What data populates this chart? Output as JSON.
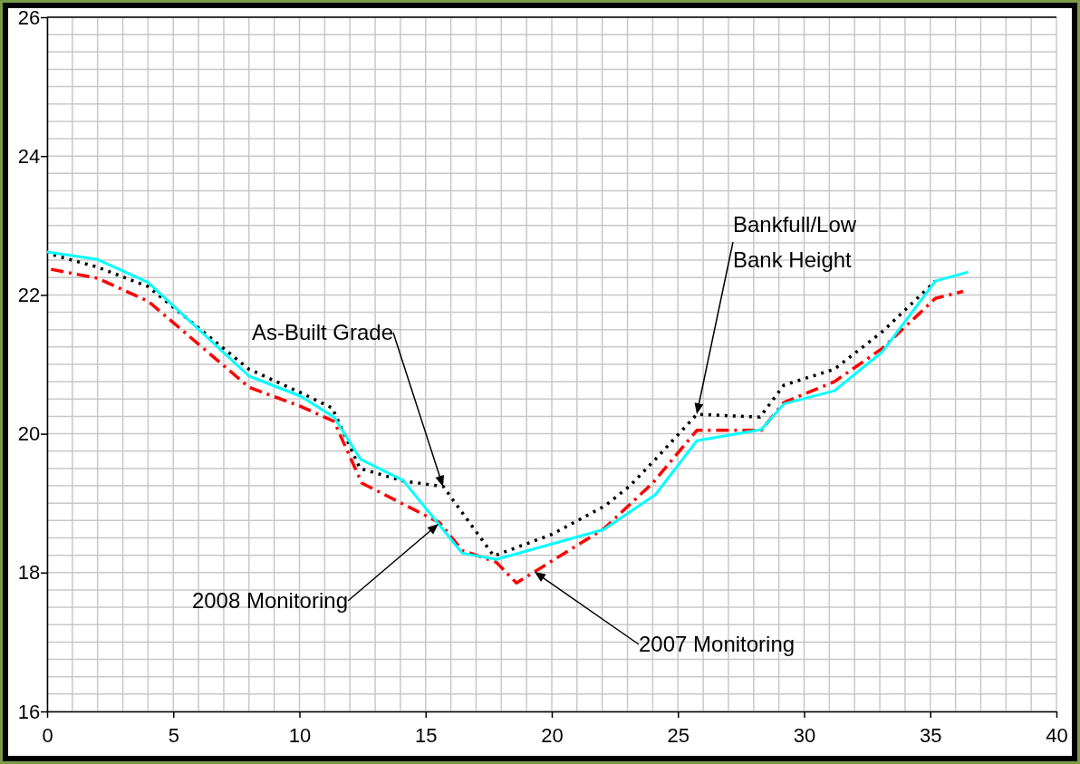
{
  "chart_data": {
    "type": "line",
    "xlim": [
      0,
      40
    ],
    "xticks": [
      0,
      5,
      10,
      15,
      20,
      25,
      30,
      35,
      40
    ],
    "ylim": [
      16,
      26
    ],
    "yticks": [
      16,
      18,
      20,
      22,
      24,
      26
    ],
    "grid": true,
    "marker": "none",
    "series": [
      {
        "color": "#000000",
        "line_style": "dotted",
        "x": [
          0,
          2,
          4,
          8,
          10,
          11.3,
          12.4,
          14.1,
          15.7,
          17.7,
          20,
          22.1,
          23.1,
          24.1,
          25.75,
          28.25,
          29.2,
          31.2,
          33.1,
          35.2
        ],
        "values": [
          22.6,
          22.4,
          22.12,
          20.93,
          20.6,
          20.37,
          19.5,
          19.32,
          19.24,
          18.24,
          18.55,
          18.96,
          19.25,
          19.63,
          20.28,
          20.24,
          20.7,
          20.93,
          21.47,
          22.2
        ]
      },
      {
        "color": "#ff0000",
        "line_style": "dashed",
        "x": [
          0,
          2,
          4,
          8,
          10,
          11.37,
          12.47,
          15.55,
          16.45,
          17.8,
          18.6,
          22.06,
          24.0,
          25.75,
          28.3,
          29.2,
          31.2,
          33.1,
          35.2,
          36.3
        ],
        "values": [
          22.38,
          22.24,
          21.91,
          20.67,
          20.4,
          20.18,
          19.29,
          18.72,
          18.32,
          18.15,
          17.85,
          18.63,
          19.29,
          20.05,
          20.05,
          20.45,
          20.75,
          21.23,
          21.95,
          22.05
        ]
      },
      {
        "color": "#00ffff",
        "line_style": "solid",
        "x": [
          0,
          2,
          4,
          8,
          10.05,
          11.37,
          12.43,
          14.1,
          16.45,
          17.8,
          22.06,
          24.1,
          25.75,
          28.3,
          29.2,
          31.2,
          33.1,
          35.2,
          36.5
        ],
        "values": [
          22.62,
          22.51,
          22.18,
          20.83,
          20.54,
          20.24,
          19.63,
          19.33,
          18.28,
          18.19,
          18.62,
          19.12,
          19.9,
          20.06,
          20.43,
          20.62,
          21.18,
          22.2,
          22.33
        ]
      }
    ],
    "annotations": [
      "As-Built Grade",
      "Bankfull/Low Bank Height",
      "2008 Monitoring",
      "2007 Monitoring"
    ]
  }
}
